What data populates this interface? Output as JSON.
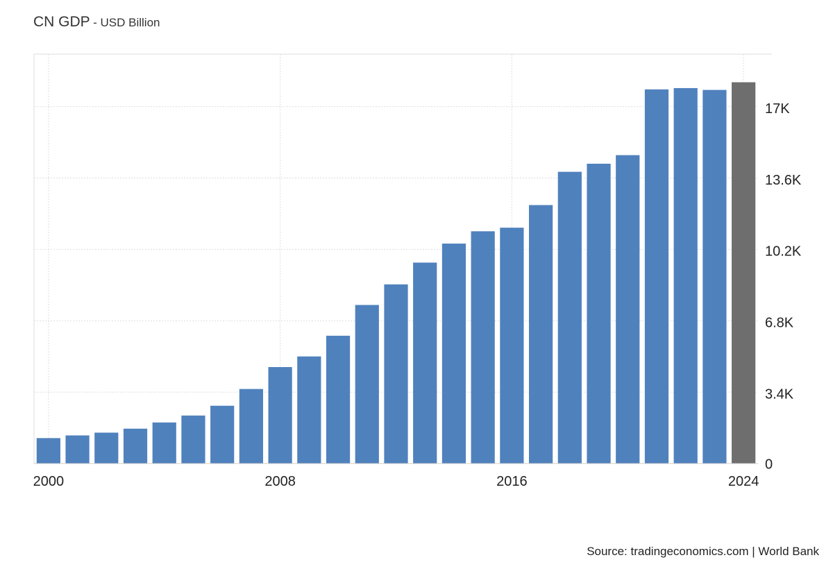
{
  "title": "CN GDP",
  "subtitle": "- USD Billion",
  "source": "Source: tradingeconomics.com | World Bank",
  "colors": {
    "bar": "#4f81bd",
    "forecast_bar": "#6e6e6e",
    "grid": "#dddddd",
    "axis_text": "#222222"
  },
  "chart_data": {
    "type": "bar",
    "categories": [
      "2000",
      "2001",
      "2002",
      "2003",
      "2004",
      "2005",
      "2006",
      "2007",
      "2008",
      "2009",
      "2010",
      "2011",
      "2012",
      "2013",
      "2014",
      "2015",
      "2016",
      "2017",
      "2018",
      "2019",
      "2020",
      "2021",
      "2022",
      "2023",
      "2024"
    ],
    "values": [
      1211,
      1339,
      1471,
      1660,
      1955,
      2286,
      2752,
      3550,
      4594,
      5101,
      6087,
      7552,
      8532,
      9570,
      10476,
      11062,
      11233,
      12310,
      13895,
      14280,
      14688,
      17820,
      17882,
      17795,
      18160
    ],
    "highlight_index": 24,
    "x_tick_labels": [
      "2000",
      "2008",
      "2016",
      "2024"
    ],
    "y_tick_labels": [
      "0",
      "3.4K",
      "6.8K",
      "10.2K",
      "13.6K",
      "17K"
    ],
    "y_ticks": [
      0,
      3400,
      6800,
      10200,
      13600,
      17000
    ],
    "ylim": [
      0,
      19500
    ],
    "grid": true,
    "y_axis_position": "right"
  }
}
